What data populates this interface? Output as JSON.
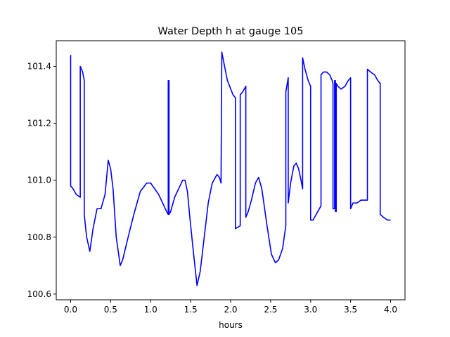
{
  "chart_data": {
    "type": "line",
    "title": "Water Depth h at gauge 105",
    "xlabel": "hours",
    "ylabel": "",
    "xlim": [
      -0.18,
      4.18
    ],
    "ylim": [
      100.58,
      101.49
    ],
    "xticks": [
      0.0,
      0.5,
      1.0,
      1.5,
      2.0,
      2.5,
      3.0,
      3.5,
      4.0
    ],
    "xtick_labels": [
      "0.0",
      "0.5",
      "1.0",
      "1.5",
      "2.0",
      "2.5",
      "3.0",
      "3.5",
      "4.0"
    ],
    "yticks": [
      100.6,
      100.8,
      101.0,
      101.2,
      101.4
    ],
    "ytick_labels": [
      "100.6",
      "100.8",
      "101.0",
      "101.2",
      "101.4"
    ],
    "grid": false,
    "legend": null,
    "series": [
      {
        "color": "#0000ff",
        "x": [
          0.0,
          0.0,
          0.03,
          0.07,
          0.12,
          0.12,
          0.15,
          0.17,
          0.17,
          0.2,
          0.24,
          0.28,
          0.33,
          0.38,
          0.43,
          0.47,
          0.5,
          0.53,
          0.57,
          0.62,
          0.65,
          0.71,
          0.79,
          0.87,
          0.95,
          1.0,
          1.05,
          1.1,
          1.15,
          1.2,
          1.22,
          1.22,
          1.23,
          1.23,
          1.25,
          1.3,
          1.35,
          1.4,
          1.43,
          1.46,
          1.49,
          1.53,
          1.58,
          1.62,
          1.67,
          1.72,
          1.77,
          1.83,
          1.86,
          1.88,
          1.89,
          1.89,
          1.91,
          1.96,
          2.03,
          2.06,
          2.06,
          2.12,
          2.12,
          2.15,
          2.19,
          2.19,
          2.22,
          2.26,
          2.31,
          2.35,
          2.39,
          2.45,
          2.51,
          2.56,
          2.6,
          2.65,
          2.69,
          2.69,
          2.72,
          2.72,
          2.75,
          2.79,
          2.82,
          2.85,
          2.88,
          2.9,
          2.9,
          2.93,
          2.97,
          3.0,
          3.0,
          3.03,
          3.07,
          3.13,
          3.13,
          3.16,
          3.2,
          3.24,
          3.27,
          3.28,
          3.28,
          3.3,
          3.3,
          3.31,
          3.31,
          3.32,
          3.32,
          3.34,
          3.38,
          3.43,
          3.47,
          3.5,
          3.5,
          3.53,
          3.58,
          3.63,
          3.67,
          3.71,
          3.71,
          3.75,
          3.8,
          3.84,
          3.87,
          3.87,
          3.91,
          3.96,
          4.0
        ],
        "y": [
          101.44,
          100.98,
          100.97,
          100.95,
          100.94,
          101.4,
          101.38,
          101.35,
          100.88,
          100.8,
          100.75,
          100.83,
          100.9,
          100.9,
          100.95,
          101.07,
          101.04,
          100.97,
          100.8,
          100.7,
          100.72,
          100.79,
          100.88,
          100.96,
          100.99,
          100.99,
          100.97,
          100.95,
          100.92,
          100.89,
          100.88,
          101.35,
          101.35,
          100.88,
          100.89,
          100.94,
          100.97,
          101.0,
          101.0,
          100.96,
          100.87,
          100.76,
          100.63,
          100.68,
          100.8,
          100.92,
          100.99,
          101.02,
          101.01,
          100.99,
          101.45,
          101.45,
          101.42,
          101.35,
          101.3,
          101.29,
          100.83,
          100.84,
          101.3,
          101.31,
          101.33,
          100.87,
          100.89,
          100.93,
          100.99,
          101.01,
          100.97,
          100.85,
          100.74,
          100.71,
          100.72,
          100.76,
          100.84,
          101.31,
          101.36,
          100.92,
          100.99,
          101.05,
          101.06,
          101.04,
          101.0,
          100.97,
          101.43,
          101.39,
          101.35,
          101.33,
          100.86,
          100.86,
          100.88,
          100.91,
          101.37,
          101.38,
          101.38,
          101.37,
          101.35,
          101.34,
          100.9,
          100.9,
          101.35,
          101.35,
          100.89,
          100.89,
          101.34,
          101.33,
          101.32,
          101.33,
          101.35,
          101.36,
          100.9,
          100.92,
          100.92,
          100.93,
          100.93,
          100.93,
          101.39,
          101.38,
          101.37,
          101.35,
          101.34,
          100.88,
          100.87,
          100.86,
          100.86
        ]
      }
    ]
  }
}
